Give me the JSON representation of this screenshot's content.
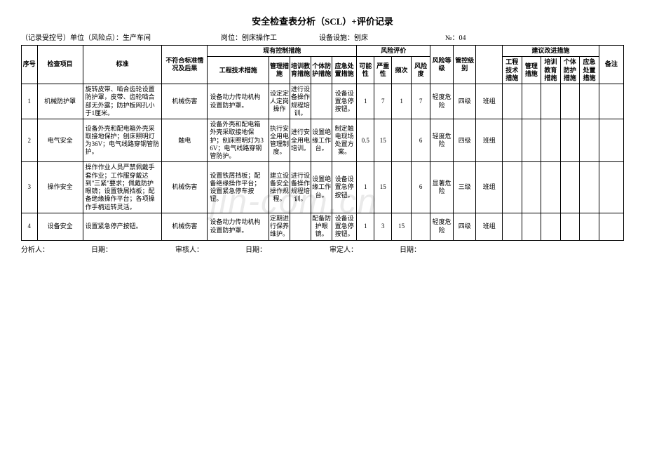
{
  "title": "安全检查表分析（SCL）+评价记录",
  "header": {
    "record_label": "（记录受控号）单位（风险点）：",
    "record_value": "生产车间",
    "post_label": "岗位：",
    "post_value": "刨床操作工",
    "equip_label": "设备设施：",
    "equip_value": "刨床",
    "no_label": "№：",
    "no_value": "04"
  },
  "columns": {
    "seq": "序号",
    "item": "检查项目",
    "std": "标准",
    "nonconform": "不符合标准情况及后果",
    "exist_group": "现有控制措施",
    "eng": "工程技术措施",
    "mgmt": "管理措施",
    "train": "培训教育措施",
    "ppe": "个体防护措施",
    "emerg": "应急处置措施",
    "risk_group": "风险评价",
    "possibility": "可能性",
    "severity": "严重性",
    "freq": "频次",
    "risk_deg": "风险度",
    "risk_level": "风险等级",
    "ctrl_level": "管控级别",
    "sugg_group": "建议改进措施",
    "s_eng": "工程技术措施",
    "s_mgmt": "管理措施",
    "s_train": "培训教育措施",
    "s_ppe": "个体防护措施",
    "s_emerg": "应急处置措施",
    "remark": "备注"
  },
  "rows": [
    {
      "seq": "1",
      "item": "机械防护罩",
      "std": "旋转皮带、啮合齿轮设置防护罩，皮带、齿轮啮合部无外露；防护板网孔小于1厘米。",
      "nonconform": "机械伤害",
      "eng": "设备动力传动机构设置防护罩。",
      "mgmt": "设定定人定岗操作",
      "train": "进行设备操作规程培训。",
      "ppe": "",
      "emerg": "设备设置急停按钮。",
      "possibility": "1",
      "severity": "7",
      "freq": "1",
      "risk_deg": "7",
      "risk_level": "轻度危险",
      "ctrl_level": "四级",
      "ctrl_by": "班组",
      "s_eng": "",
      "s_mgmt": "",
      "s_train": "",
      "s_ppe": "",
      "s_emerg": "",
      "remark": ""
    },
    {
      "seq": "2",
      "item": "电气安全",
      "std": "设备外壳和配电箱外壳采取接地保护；刨床照明灯为36V；电气线路穿钢管防护。",
      "nonconform": "触电",
      "eng": "设备外壳和配电箱外壳采取接地保护；刨床照明灯为36V；电气线路穿钢管防护。",
      "mgmt": "执行安全用电管理制度。",
      "train": "进行安全用电培训。",
      "ppe": "设置绝缘工作台。",
      "emerg": "制定触电现场处置方案。",
      "possibility": "0.5",
      "severity": "15",
      "freq": "",
      "risk_deg": "6",
      "risk_level": "轻度危险",
      "ctrl_level": "四级",
      "ctrl_by": "班组",
      "s_eng": "",
      "s_mgmt": "",
      "s_train": "",
      "s_ppe": "",
      "s_emerg": "",
      "remark": ""
    },
    {
      "seq": "3",
      "item": "操作安全",
      "std": "操作作业人员严禁佩戴手套作业；工作服穿戴达到\"三紧\"要求；佩戴防护眼镜；设置铁屑挡板；配备绝缘操作平台；各项操作手柄运转灵活。",
      "nonconform": "机械伤害",
      "eng": "设置铁屑挡板；配备绝缘操作平台；设置紧急停车按钮。",
      "mgmt": "建立设备安全操作规程。",
      "train": "进行设备操作规程培训。",
      "ppe": "设置绝缘工作台。",
      "emerg": "设备设置急停按钮。",
      "possibility": "1",
      "severity": "15",
      "freq": "",
      "risk_deg": "6",
      "risk_level": "显著危险",
      "ctrl_level": "三级",
      "ctrl_by": "班组",
      "s_eng": "",
      "s_mgmt": "",
      "s_train": "",
      "s_ppe": "",
      "s_emerg": "",
      "remark": ""
    },
    {
      "seq": "4",
      "item": "设备安全",
      "std": "设置紧急停产按钮。",
      "nonconform": "机械伤害",
      "eng": "设备动力传动机构设置防护罩。",
      "mgmt": "定期进行保养维护。",
      "train": "",
      "ppe": "配备防护眼镜。",
      "emerg": "设备设置急停按钮。",
      "possibility": "1",
      "severity": "3",
      "freq": "15",
      "risk_deg": "",
      "risk_level": "轻度危险",
      "ctrl_level": "四级",
      "ctrl_by": "班组",
      "s_eng": "",
      "s_mgmt": "",
      "s_train": "",
      "s_ppe": "",
      "s_emerg": "",
      "remark": ""
    }
  ],
  "footer": {
    "analyst": "分析人：",
    "date1": "日期：",
    "reviewer": "审核人：",
    "date2": "日期：",
    "approver": "审定人：",
    "date3": "日期："
  },
  "watermark": "jin-com.cn",
  "col_widths": {
    "seq": 18,
    "item": 52,
    "std": 90,
    "nonconform": 52,
    "eng": 70,
    "mgmt": 24,
    "train": 24,
    "ppe": 24,
    "emerg": 28,
    "possibility": 20,
    "severity": 20,
    "freq": 22,
    "risk_deg": 22,
    "risk_level": 26,
    "ctrl_level": 26,
    "ctrl_by": 30,
    "s_eng": 22,
    "s_mgmt": 22,
    "s_train": 22,
    "s_ppe": 22,
    "s_emerg": 22,
    "remark": 28
  }
}
